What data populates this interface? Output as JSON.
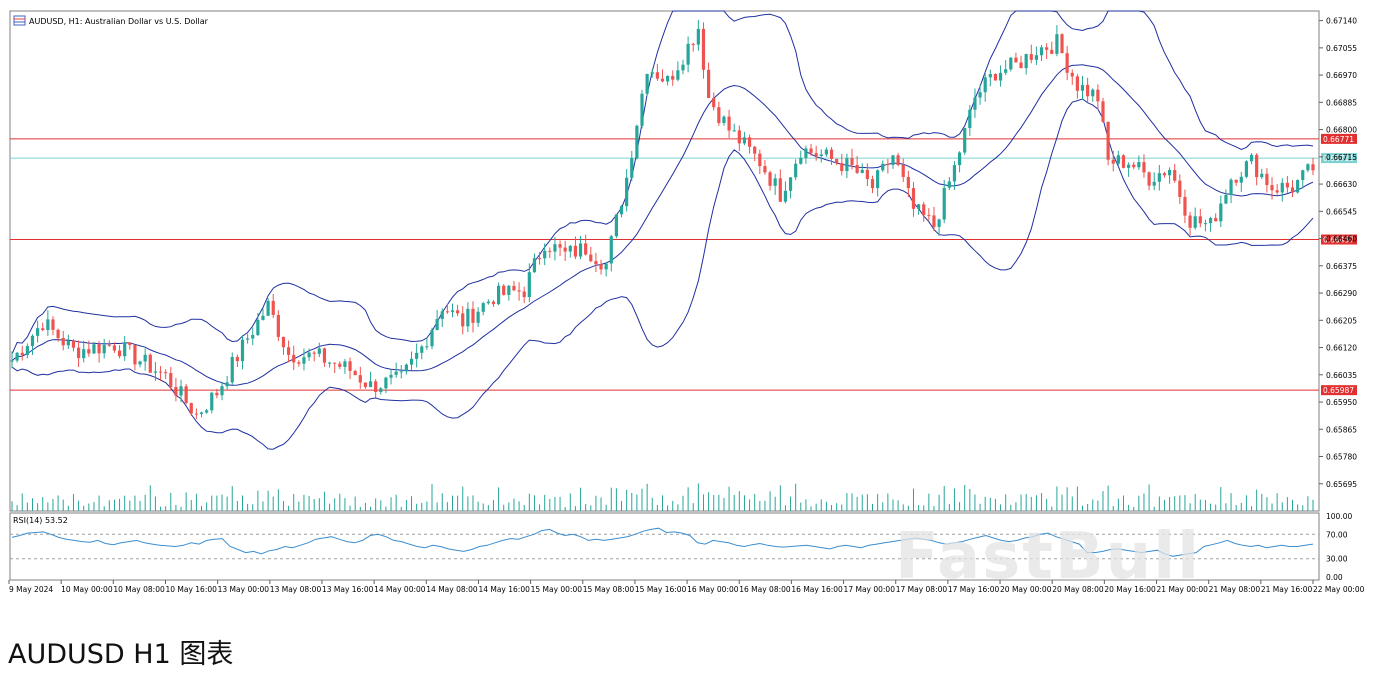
{
  "caption": "AUDUSD H1 图表",
  "watermark": "FastBull",
  "chart_data": {
    "type": "candlestick",
    "title": "AUDUSD, H1:  Australian Dollar vs U.S. Dollar",
    "price_axis": {
      "ylim": [
        0.6561,
        0.6717
      ],
      "ticks": [
        "0.67140",
        "0.67055",
        "0.66970",
        "0.66885",
        "0.66800",
        "0.66715",
        "0.66630",
        "0.66545",
        "0.66460",
        "0.66375",
        "0.66290",
        "0.66205",
        "0.66120",
        "0.66035",
        "0.65950",
        "0.65865",
        "0.65780",
        "0.65695"
      ]
    },
    "levels": [
      {
        "label": "0.66771",
        "value": 0.66771,
        "color": "#e03030"
      },
      {
        "label": "0.66711",
        "value": 0.66711,
        "color": "#7fd0d0"
      },
      {
        "label": "0.66457",
        "value": 0.66457,
        "color": "#e03030"
      },
      {
        "label": "0.65987",
        "value": 0.65987,
        "color": "#e03030"
      }
    ],
    "time_labels": [
      "9 May 2024",
      "10 May 00:00",
      "10 May 08:00",
      "10 May 16:00",
      "13 May 00:00",
      "13 May 08:00",
      "13 May 16:00",
      "14 May 00:00",
      "14 May 08:00",
      "14 May 16:00",
      "15 May 00:00",
      "15 May 08:00",
      "15 May 16:00",
      "16 May 00:00",
      "16 May 08:00",
      "16 May 16:00",
      "17 May 00:00",
      "17 May 08:00",
      "17 May 16:00",
      "20 May 00:00",
      "20 May 08:00",
      "20 May 16:00",
      "21 May 00:00",
      "21 May 08:00",
      "21 May 16:00",
      "22 May 00:00"
    ],
    "rsi": {
      "label": "RSI(14) 53.52",
      "ticks": [
        "100.00",
        "70.00",
        "30.00",
        "0.00"
      ],
      "levels": [
        70,
        30
      ],
      "values": [
        65,
        68,
        72,
        73,
        74,
        70,
        65,
        62,
        60,
        58,
        57,
        60,
        55,
        53,
        56,
        58,
        60,
        56,
        54,
        52,
        51,
        50,
        52,
        56,
        54,
        60,
        62,
        63,
        50,
        45,
        40,
        42,
        38,
        43,
        45,
        50,
        48,
        52,
        56,
        62,
        64,
        66,
        62,
        58,
        56,
        60,
        68,
        70,
        66,
        60,
        58,
        54,
        50,
        48,
        52,
        50,
        46,
        44,
        42,
        45,
        50,
        52,
        56,
        60,
        63,
        62,
        66,
        70,
        76,
        78,
        72,
        68,
        70,
        66,
        60,
        62,
        60,
        62,
        64,
        66,
        70,
        75,
        78,
        80,
        73,
        74,
        72,
        68,
        56,
        54,
        60,
        58,
        56,
        52,
        50,
        53,
        55,
        52,
        50,
        49,
        50,
        51,
        52,
        50,
        48,
        46,
        50,
        52,
        50,
        48,
        52,
        54,
        56,
        58,
        60,
        62,
        64,
        62,
        60,
        56,
        54,
        56,
        58,
        62,
        65,
        68,
        64,
        60,
        58,
        60,
        64,
        66,
        70,
        72,
        66,
        62,
        58,
        54,
        40,
        40,
        42,
        45,
        46,
        44,
        42,
        40,
        42,
        44,
        38,
        34,
        36,
        38,
        40,
        50,
        53,
        56,
        60,
        55,
        52,
        50,
        52,
        48,
        50,
        52,
        50,
        50,
        52,
        54
      ]
    }
  }
}
